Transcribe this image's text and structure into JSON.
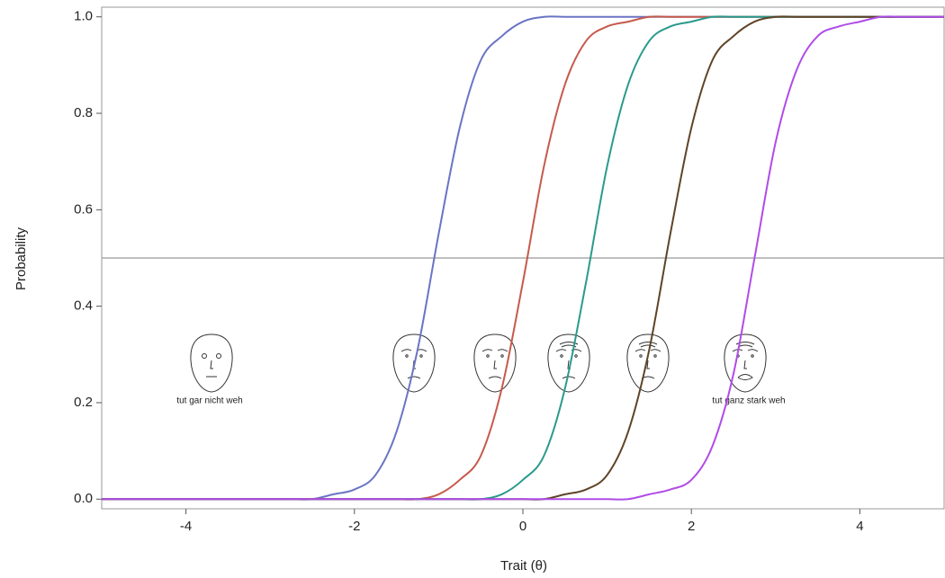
{
  "chart_data": {
    "type": "line",
    "x_label": "Trait (θ)",
    "y_label": "Probability",
    "x": [
      -5,
      -4.75,
      -4.5,
      -4.25,
      -4,
      -3.75,
      -3.5,
      -3.25,
      -3,
      -2.75,
      -2.5,
      -2.25,
      -2,
      -1.75,
      -1.5,
      -1.25,
      -1,
      -0.75,
      -0.5,
      -0.25,
      0,
      0.25,
      0.5,
      0.75,
      1,
      1.25,
      1.5,
      1.75,
      2,
      2.25,
      2.5,
      2.75,
      3,
      3.25,
      3.5,
      3.75,
      4,
      4.25,
      4.5,
      4.75,
      5
    ],
    "series": [
      {
        "color": "#6a74c4",
        "values": [
          0,
          0,
          0,
          0,
          0,
          0,
          0,
          0,
          0,
          0,
          0,
          0.01,
          0.02,
          0.05,
          0.14,
          0.31,
          0.55,
          0.77,
          0.91,
          0.96,
          0.99,
          1,
          1,
          1,
          1,
          1,
          1,
          1,
          1,
          1,
          1,
          1,
          1,
          1,
          1,
          1,
          1,
          1,
          1,
          1,
          1
        ]
      },
      {
        "color": "#c65a4c",
        "values": [
          0,
          0,
          0,
          0,
          0,
          0,
          0,
          0,
          0,
          0,
          0,
          0,
          0,
          0,
          0,
          0,
          0.01,
          0.04,
          0.09,
          0.23,
          0.45,
          0.69,
          0.86,
          0.95,
          0.98,
          0.99,
          1,
          1,
          1,
          1,
          1,
          1,
          1,
          1,
          1,
          1,
          1,
          1,
          1,
          1,
          1
        ]
      },
      {
        "color": "#2a9a8c",
        "values": [
          0,
          0,
          0,
          0,
          0,
          0,
          0,
          0,
          0,
          0,
          0,
          0,
          0,
          0,
          0,
          0,
          0,
          0,
          0,
          0.01,
          0.04,
          0.09,
          0.23,
          0.45,
          0.69,
          0.86,
          0.95,
          0.98,
          0.99,
          1,
          1,
          1,
          1,
          1,
          1,
          1,
          1,
          1,
          1,
          1,
          1
        ]
      },
      {
        "color": "#5e4426",
        "values": [
          0,
          0,
          0,
          0,
          0,
          0,
          0,
          0,
          0,
          0,
          0,
          0,
          0,
          0,
          0,
          0,
          0,
          0,
          0,
          0,
          0,
          0,
          0.01,
          0.02,
          0.05,
          0.14,
          0.31,
          0.55,
          0.77,
          0.91,
          0.96,
          0.99,
          1,
          1,
          1,
          1,
          1,
          1,
          1,
          1,
          1
        ]
      },
      {
        "color": "#b04ce8",
        "values": [
          0,
          0,
          0,
          0,
          0,
          0,
          0,
          0,
          0,
          0,
          0,
          0,
          0,
          0,
          0,
          0,
          0,
          0,
          0,
          0,
          0,
          0,
          0,
          0,
          0,
          0,
          0.01,
          0.02,
          0.04,
          0.11,
          0.26,
          0.5,
          0.74,
          0.89,
          0.96,
          0.98,
          0.99,
          1,
          1,
          1,
          1
        ]
      }
    ],
    "xlim": [
      -5,
      5
    ],
    "ylim": [
      -0.02,
      1.02
    ],
    "xticks": [
      -4,
      -2,
      0,
      2,
      4
    ],
    "yticks": [
      {
        "value": 0,
        "label": "0.0"
      },
      0.2,
      0.4,
      0.6,
      0.8,
      {
        "value": 1,
        "label": "1.0"
      }
    ],
    "hline": 0.5,
    "annotations": [
      "tut gar nicht weh",
      "tut ganz stark weh"
    ]
  }
}
